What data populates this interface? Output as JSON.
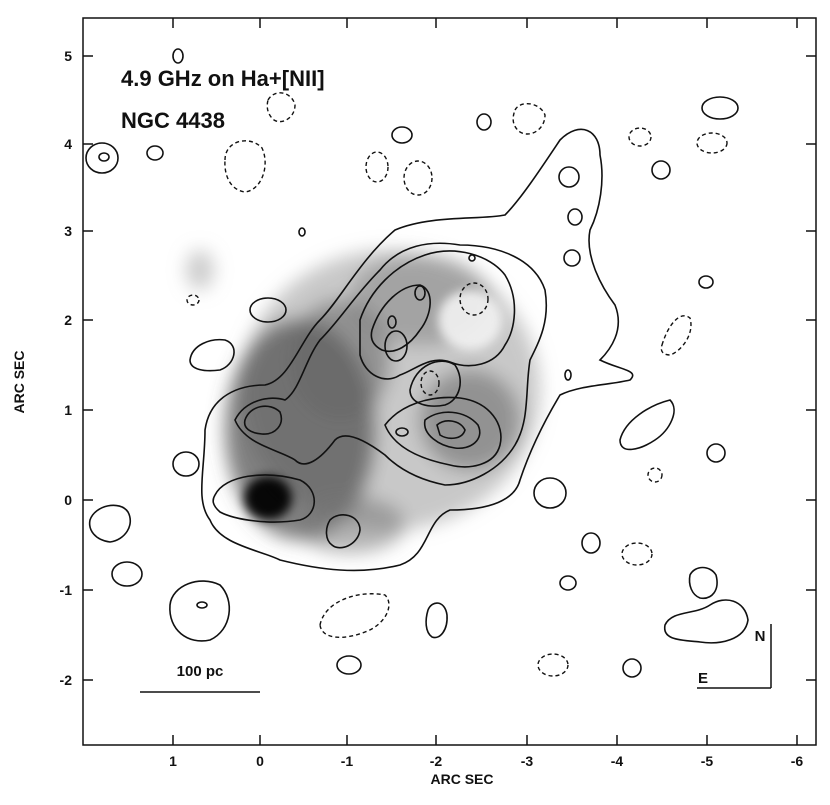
{
  "title_line1": "4.9 GHz on Ha+[NII]",
  "title_line2": "NGC 4438",
  "xlabel": "ARC SEC",
  "ylabel": "ARC SEC",
  "x_ticks": [
    "1",
    "0",
    "-1",
    "-2",
    "-3",
    "-4",
    "-5",
    "-6"
  ],
  "y_ticks": [
    "5",
    "4",
    "3",
    "2",
    "1",
    "0",
    "-1",
    "-2"
  ],
  "scale_bar_label": "100 pc",
  "compass_north": "N",
  "compass_east": "E",
  "colors": {
    "contour": "#111111",
    "frame": "#111111",
    "background": "#ffffff"
  }
}
